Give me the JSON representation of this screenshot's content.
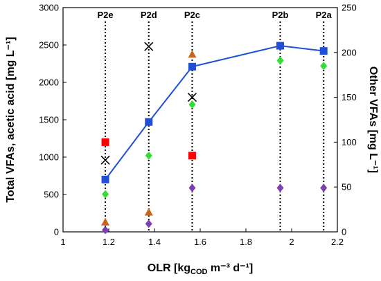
{
  "chart_data": {
    "type": "scatter",
    "xlabel": {
      "main": "OLR [kg",
      "sub": "COD",
      "rest": " m⁻³ d⁻¹]"
    },
    "ylabel_left": "Total VFAs, acetic acid [mg L⁻¹]",
    "ylabel_right": "Other VFAs [mg L⁻¹]",
    "xlim": [
      1,
      2.2
    ],
    "ylim_left": [
      0,
      3000
    ],
    "ylim_right": [
      0,
      250
    ],
    "x_ticks": [
      "1",
      "1.2",
      "1.4",
      "1.6",
      "1.8",
      "2",
      "2.2"
    ],
    "y_left_ticks": [
      "0",
      "500",
      "1000",
      "1500",
      "2000",
      "2500",
      "3000"
    ],
    "y_right_ticks": [
      "0",
      "50",
      "100",
      "150",
      "200",
      "250"
    ],
    "phases": [
      {
        "label": "P2e",
        "x": 1.185
      },
      {
        "label": "P2d",
        "x": 1.375
      },
      {
        "label": "P2c",
        "x": 1.565
      },
      {
        "label": "P2b",
        "x": 1.95
      },
      {
        "label": "P2a",
        "x": 2.14
      }
    ],
    "series": [
      {
        "axis": "left",
        "marker": "square",
        "color": "#1f4fd6",
        "line": true,
        "points": [
          [
            1.185,
            700
          ],
          [
            1.375,
            1470
          ],
          [
            1.565,
            2210
          ],
          [
            1.95,
            2490
          ],
          [
            2.14,
            2420
          ]
        ]
      },
      {
        "axis": "left",
        "marker": "square",
        "color": "#ff0000",
        "line": false,
        "points": [
          [
            1.185,
            1200
          ],
          [
            1.565,
            1020
          ]
        ]
      },
      {
        "axis": "left",
        "marker": "cross",
        "color": "#000000",
        "line": false,
        "points": [
          [
            1.185,
            960
          ],
          [
            1.375,
            2480
          ],
          [
            1.565,
            1800
          ]
        ]
      },
      {
        "axis": "right",
        "marker": "diamond",
        "color": "#33dd33",
        "line": false,
        "points": [
          [
            1.185,
            42
          ],
          [
            1.375,
            85
          ],
          [
            1.565,
            142
          ],
          [
            1.95,
            191
          ],
          [
            2.14,
            185
          ]
        ]
      },
      {
        "axis": "right",
        "marker": "triangle",
        "color": "#c8641e",
        "line": false,
        "points": [
          [
            1.185,
            11
          ],
          [
            1.375,
            22
          ],
          [
            1.565,
            198
          ]
        ]
      },
      {
        "axis": "right",
        "marker": "diamond",
        "color": "#7b3fb2",
        "line": false,
        "points": [
          [
            1.185,
            2
          ],
          [
            1.375,
            9
          ],
          [
            1.565,
            49
          ],
          [
            1.95,
            49
          ],
          [
            2.14,
            49
          ]
        ]
      }
    ]
  }
}
